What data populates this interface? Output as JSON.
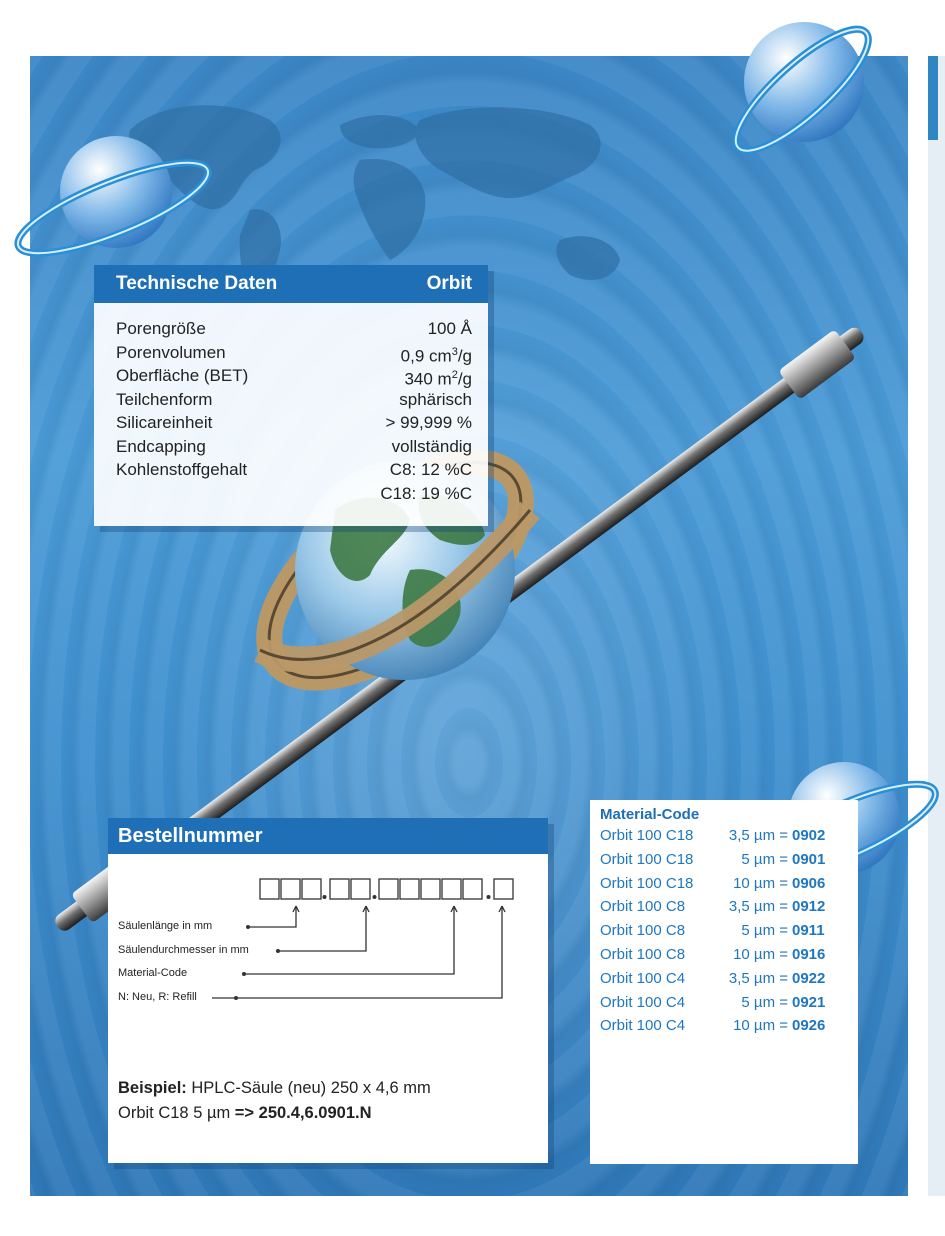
{
  "technische_daten": {
    "heading_left": "Technische Daten",
    "heading_right": "Orbit",
    "rows": [
      {
        "label": "Porengröße",
        "value": "100 Å"
      },
      {
        "label": "Porenvolumen",
        "value_prefix": "0,9 cm",
        "value_sup": "3",
        "value_suffix": "/g"
      },
      {
        "label": "Oberfläche (BET)",
        "value_prefix": "340 m",
        "value_sup": "2",
        "value_suffix": "/g"
      },
      {
        "label": "Teilchenform",
        "value": "sphärisch"
      },
      {
        "label": "Silicareinheit",
        "value": "> 99,999 %"
      },
      {
        "label": "Endcapping",
        "value": "vollständig"
      },
      {
        "label": "Kohlenstoffgehalt",
        "value": "C8: 12 %C"
      },
      {
        "label": "",
        "value": "C18: 19 %C"
      }
    ]
  },
  "bestellnummer": {
    "heading": "Bestellnummer",
    "labels": {
      "saeulenlaenge": "Säulenlänge in mm",
      "saeulendurchmesser": "Säulendurchmesser in mm",
      "material_code": "Material-Code",
      "neu_refill": "N: Neu, R: Refill"
    },
    "example_label": "Beispiel:",
    "example_line1": " HPLC-Säule (neu) 250 x 4,6 mm",
    "example_line2_prefix": "Orbit C18 5 µm ",
    "example_line2_bold": "=> 250.4,6.0901.N"
  },
  "material_code": {
    "title": "Material-Code",
    "rows": [
      {
        "name": "Orbit 100 C18",
        "size": "3,5 µm =",
        "code": "0902"
      },
      {
        "name": "Orbit 100 C18",
        "size": "5 µm =",
        "code": "0901"
      },
      {
        "name": "Orbit 100 C18",
        "size": "10 µm =",
        "code": "0906"
      },
      {
        "name": "Orbit 100 C8",
        "size": "3,5 µm =",
        "code": "0912"
      },
      {
        "name": "Orbit 100 C8",
        "size": "5 µm =",
        "code": "0911"
      },
      {
        "name": "Orbit 100 C8",
        "size": "10 µm =",
        "code": "0916"
      },
      {
        "name": "Orbit 100 C4",
        "size": "3,5 µm =",
        "code": "0922"
      },
      {
        "name": "Orbit 100 C4",
        "size": "5 µm =",
        "code": "0921"
      },
      {
        "name": "Orbit 100 C4",
        "size": "10 µm =",
        "code": "0926"
      }
    ]
  },
  "colors": {
    "brand_blue": "#1e6fb5",
    "text_blue": "#1e77c0",
    "background_blue": "#3f90cf"
  }
}
